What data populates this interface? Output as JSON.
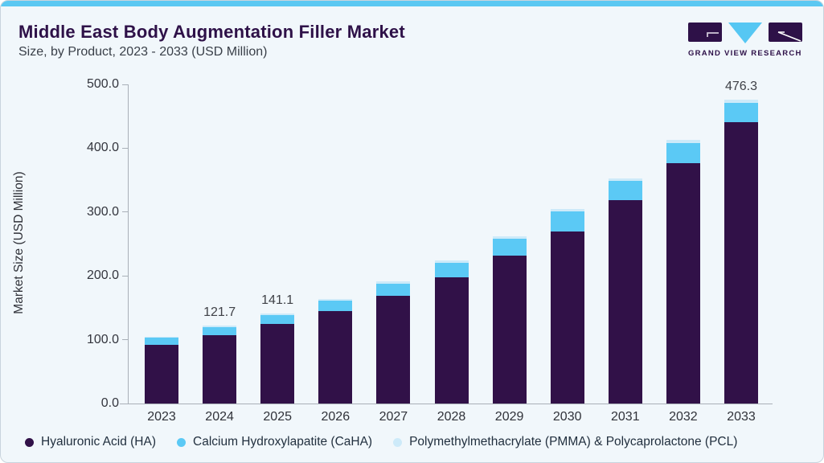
{
  "header": {
    "title": "Middle East Body Augmentation Filler Market",
    "subtitle": "Size, by Product, 2023 - 2033 (USD Million)",
    "logo_text": "GRAND VIEW RESEARCH"
  },
  "colors": {
    "accent_bar": "#5bc8f2",
    "card_bg": "#f1f7fb",
    "title_purple": "#2e1148",
    "axis_line": "#a9b0b8",
    "ha": "#311148",
    "caha": "#5bc9f5",
    "pmma": "#cdeaf9"
  },
  "chart_data": {
    "type": "bar",
    "stacked": true,
    "title": "Middle East Body Augmentation Filler Market Size, by Product, 2023 - 2033 (USD Million)",
    "ylabel": "Market Size (USD Million)",
    "xlabel": "",
    "ylim": [
      0,
      500
    ],
    "ytick_labels": [
      "0.0",
      "100.0",
      "200.0",
      "300.0",
      "400.0",
      "500.0"
    ],
    "grid": false,
    "legend_position": "bottom",
    "categories": [
      "2023",
      "2024",
      "2025",
      "2026",
      "2027",
      "2028",
      "2029",
      "2030",
      "2031",
      "2032",
      "2033"
    ],
    "series": [
      {
        "name": "Hyaluronic Acid (HA)",
        "color": "#311148",
        "values": [
          92.0,
          107.5,
          124.5,
          144.5,
          169.0,
          198.0,
          231.5,
          269.5,
          319.0,
          377.0,
          441.0
        ]
      },
      {
        "name": "Calcium Hydroxylapatite (CaHA)",
        "color": "#5bc9f5",
        "values": [
          11.0,
          12.3,
          14.4,
          16.3,
          19.2,
          22.7,
          26.7,
          31.0,
          30.2,
          30.5,
          30.3
        ]
      },
      {
        "name": "Polymethylmethacrylate (PMMA) & Polycaprolactone (PCL)",
        "color": "#cdeaf9",
        "values": [
          1.9,
          1.9,
          2.2,
          2.5,
          2.8,
          3.3,
          3.8,
          4.5,
          3.8,
          5.5,
          5.0
        ]
      }
    ],
    "totals": [
      104.9,
      121.7,
      141.1,
      163.3,
      191.0,
      224.0,
      262.0,
      305.0,
      353.0,
      413.0,
      476.3
    ],
    "bar_labels": {
      "2024": "121.7",
      "2025": "141.1",
      "2033": "476.3"
    }
  },
  "legend": {
    "items": [
      {
        "label": "Hyaluronic Acid (HA)",
        "color": "#311148"
      },
      {
        "label": "Calcium Hydroxylapatite (CaHA)",
        "color": "#5bc9f5"
      },
      {
        "label": "Polymethylmethacrylate (PMMA) & Polycaprolactone (PCL)",
        "color": "#cdeaf9"
      }
    ]
  }
}
